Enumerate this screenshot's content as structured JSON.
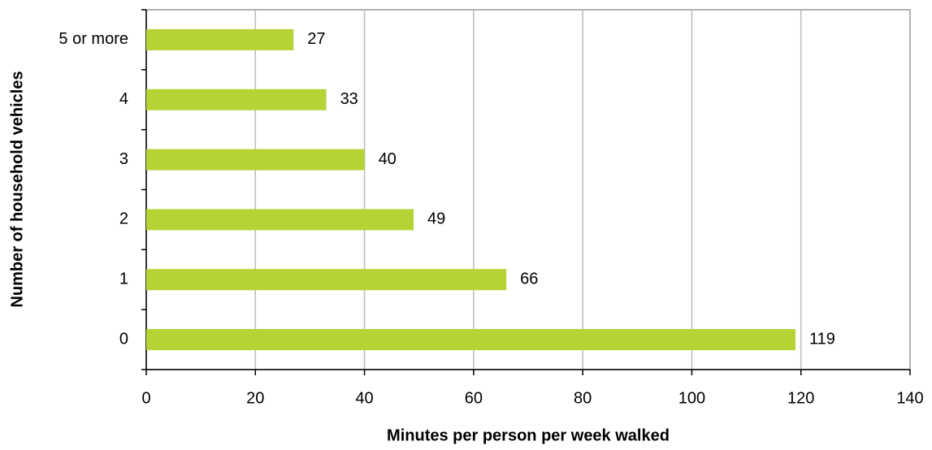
{
  "chart_data": {
    "type": "bar",
    "orientation": "horizontal",
    "xlabel": "Minutes per person per week walked",
    "ylabel": "Number of household vehicles",
    "categories": [
      "0",
      "1",
      "2",
      "3",
      "4",
      "5 or more"
    ],
    "values": [
      119,
      66,
      49,
      40,
      33,
      27
    ],
    "color": "#b5d334",
    "xlim": [
      0,
      140
    ],
    "xticks": [
      0,
      20,
      40,
      60,
      80,
      100,
      120,
      140
    ],
    "grid": true
  }
}
